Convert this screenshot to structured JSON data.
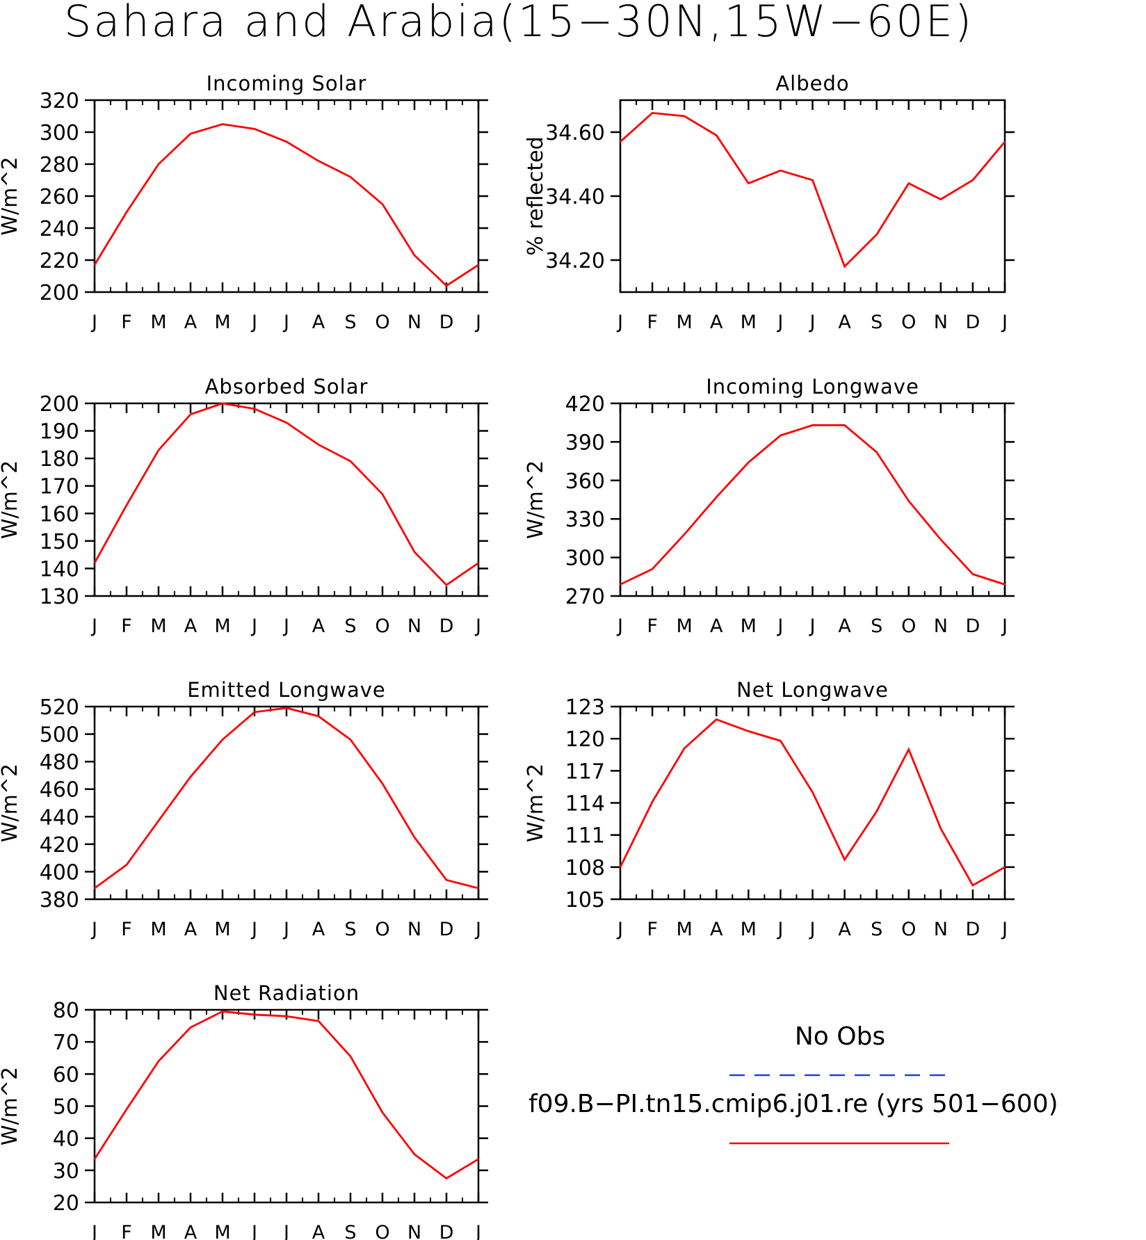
{
  "title": "Sahara and Arabia(15−30N,15W−60E)",
  "month_labels": [
    "J",
    "F",
    "M",
    "A",
    "M",
    "J",
    "J",
    "A",
    "S",
    "O",
    "N",
    "D",
    "J"
  ],
  "colors": {
    "model_line": "#ff0000",
    "obs_line": "#1f3fe0",
    "axes": "#000000"
  },
  "legend": {
    "obs_label": "No Obs",
    "obs_style": "dashed",
    "model_label": "f09.B−PI.tn15.cmip6.j01.re (yrs 501−600)",
    "model_style": "solid"
  },
  "chart_data": [
    {
      "id": "incoming-solar",
      "type": "line",
      "title": "Incoming Solar",
      "ylabel": "W/m^2",
      "ylim": [
        200,
        320
      ],
      "yticks": [
        200,
        220,
        240,
        260,
        280,
        300,
        320
      ],
      "ytick_labels": [
        "200",
        "220",
        "240",
        "260",
        "280",
        "300",
        "320"
      ],
      "series": [
        {
          "values": [
            217,
            250,
            280,
            299,
            305,
            302,
            294,
            282,
            272,
            255,
            223,
            204,
            217
          ]
        }
      ]
    },
    {
      "id": "albedo",
      "type": "line",
      "title": "Albedo",
      "ylabel": "% reflected",
      "ylim": [
        34.1,
        34.7
      ],
      "yticks": [
        34.2,
        34.4,
        34.6
      ],
      "ytick_labels": [
        "34.20",
        "34.40",
        "34.60"
      ],
      "series": [
        {
          "values": [
            34.57,
            34.66,
            34.65,
            34.59,
            34.44,
            34.48,
            34.45,
            34.18,
            34.28,
            34.44,
            34.39,
            34.45,
            34.57
          ]
        }
      ]
    },
    {
      "id": "absorbed-solar",
      "type": "line",
      "title": "Absorbed Solar",
      "ylabel": "W/m^2",
      "ylim": [
        130,
        200
      ],
      "yticks": [
        130,
        140,
        150,
        160,
        170,
        180,
        190,
        200
      ],
      "ytick_labels": [
        "130",
        "140",
        "150",
        "160",
        "170",
        "180",
        "190",
        "200"
      ],
      "series": [
        {
          "values": [
            142,
            163,
            183,
            196,
            200,
            198,
            193,
            185,
            179,
            167,
            146,
            134,
            142
          ]
        }
      ]
    },
    {
      "id": "incoming-longwave",
      "type": "line",
      "title": "Incoming Longwave",
      "ylabel": "W/m^2",
      "ylim": [
        270,
        420
      ],
      "yticks": [
        270,
        300,
        330,
        360,
        390,
        420
      ],
      "ytick_labels": [
        "270",
        "300",
        "330",
        "360",
        "390",
        "420"
      ],
      "series": [
        {
          "values": [
            279,
            291,
            318,
            347,
            374,
            395,
            403,
            403,
            382,
            344,
            314,
            287,
            279
          ]
        }
      ]
    },
    {
      "id": "emitted-longwave",
      "type": "line",
      "title": "Emitted Longwave",
      "ylabel": "W/m^2",
      "ylim": [
        380,
        520
      ],
      "yticks": [
        380,
        400,
        420,
        440,
        460,
        480,
        500,
        520
      ],
      "ytick_labels": [
        "380",
        "400",
        "420",
        "440",
        "460",
        "480",
        "500",
        "520"
      ],
      "series": [
        {
          "values": [
            388,
            405,
            437,
            469,
            496,
            516,
            519,
            513,
            496,
            464,
            425,
            394,
            388
          ]
        }
      ]
    },
    {
      "id": "net-longwave",
      "type": "line",
      "title": "Net Longwave",
      "ylabel": "W/m^2",
      "ylim": [
        105,
        123
      ],
      "yticks": [
        105,
        108,
        111,
        114,
        117,
        120,
        123
      ],
      "ytick_labels": [
        "105",
        "108",
        "111",
        "114",
        "117",
        "120",
        "123"
      ],
      "series": [
        {
          "values": [
            108,
            114.1,
            119.1,
            121.8,
            120.7,
            119.8,
            115,
            108.7,
            113.2,
            119,
            111.6,
            106.3,
            108
          ]
        }
      ]
    },
    {
      "id": "net-radiation",
      "type": "line",
      "title": "Net Radiation",
      "ylabel": "W/m^2",
      "ylim": [
        20,
        80
      ],
      "yticks": [
        20,
        30,
        40,
        50,
        60,
        70,
        80
      ],
      "ytick_labels": [
        "20",
        "30",
        "40",
        "50",
        "60",
        "70",
        "80"
      ],
      "series": [
        {
          "values": [
            33.5,
            49,
            64,
            74.5,
            79.5,
            78.5,
            78,
            76.5,
            65.5,
            48,
            35,
            27.5,
            33.5
          ]
        }
      ]
    }
  ]
}
